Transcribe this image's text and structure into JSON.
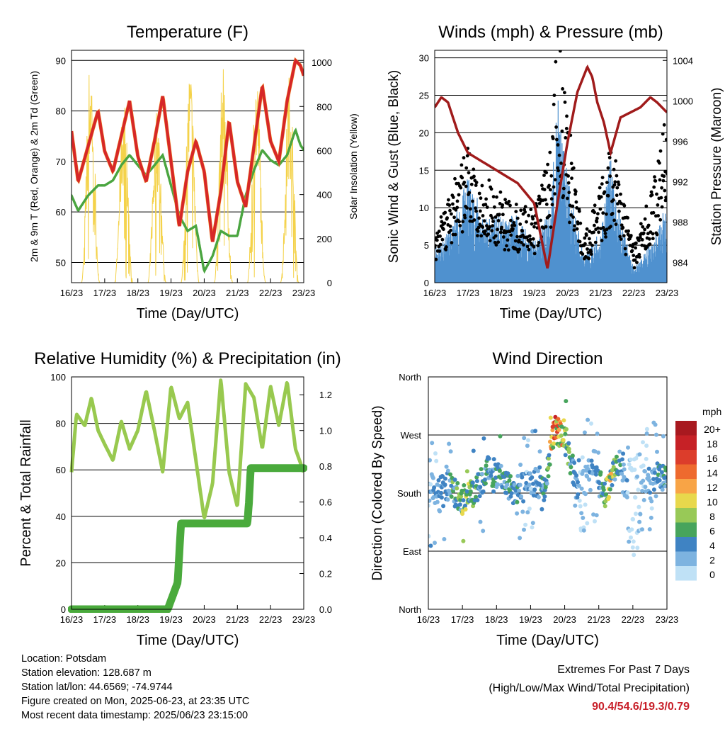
{
  "panels": {
    "temp": {
      "title": "Temperature (F)",
      "xlabel": "Time (Day/UTC)",
      "ylabel_left": "2m & 9m T (Red, Orange) & 2m Td (Green)",
      "ylabel_right": "Solar Insolation (Yellow)",
      "x_ticks": [
        "16/23",
        "17/23",
        "18/23",
        "19/23",
        "20/23",
        "21/23",
        "22/23",
        "23/23"
      ],
      "y_ticks_left": [
        "50",
        "60",
        "70",
        "80",
        "90"
      ],
      "y_ticks_right": [
        "0",
        "200",
        "400",
        "600",
        "800",
        "1000"
      ]
    },
    "wind": {
      "title": "Winds (mph) & Pressure (mb)",
      "xlabel": "Time (Day/UTC)",
      "ylabel_left": "Sonic Wind & Gust (Blue, Black)",
      "ylabel_right": "Station Pressure (Maroon)",
      "x_ticks": [
        "16/23",
        "17/23",
        "18/23",
        "19/23",
        "20/23",
        "21/23",
        "22/23",
        "23/23"
      ],
      "y_ticks_left": [
        "0",
        "5",
        "10",
        "15",
        "20",
        "25",
        "30"
      ],
      "y_ticks_right": [
        "984",
        "988",
        "992",
        "996",
        "1000",
        "1004"
      ]
    },
    "rh": {
      "title": "Relative Humidity (%) & Precipitation (in)",
      "xlabel": "Time (Day/UTC)",
      "ylabel_left": "Percent & Total Rainfall",
      "x_ticks": [
        "16/23",
        "17/23",
        "18/23",
        "19/23",
        "20/23",
        "21/23",
        "22/23",
        "23/23"
      ],
      "y_ticks_left": [
        "0",
        "20",
        "40",
        "60",
        "80",
        "100"
      ],
      "y_ticks_right": [
        "0.0",
        "0.2",
        "0.4",
        "0.6",
        "0.8",
        "1.0",
        "1.2"
      ]
    },
    "dir": {
      "title": "Wind Direction",
      "xlabel": "Time (Day/UTC)",
      "ylabel_left": "Direction (Colored By Speed)",
      "x_ticks": [
        "16/23",
        "17/23",
        "18/23",
        "19/23",
        "20/23",
        "21/23",
        "22/23",
        "23/23"
      ],
      "y_ticks_left": [
        "North",
        "East",
        "South",
        "West",
        "North"
      ],
      "legend_title": "mph",
      "legend_labels": [
        "20+",
        "18",
        "16",
        "14",
        "12",
        "10",
        "8",
        "6",
        "4",
        "2",
        "0"
      ],
      "legend_colors": [
        "#a8191f",
        "#c62126",
        "#dc3d2b",
        "#ee6a2e",
        "#f8a446",
        "#e8d84c",
        "#98c957",
        "#47a45c",
        "#3f83c3",
        "#7db3e0",
        "#bfe1f6"
      ]
    }
  },
  "info": {
    "location": "Location: Potsdam",
    "elevation": "Station elevation: 128.687 m",
    "latlon": "Station lat/lon: 44.6569; -74.9744",
    "created": "Figure created on Mon, 2025-06-23, at 23:35 UTC",
    "recent": "Most recent data timestamp: 2025/06/23 23:15:00"
  },
  "extremes": {
    "line1": "Extremes For Past 7 Days",
    "line2": "(High/Low/Max Wind/Total Precipitation)",
    "values": "90.4/54.6/19.3/0.79"
  },
  "colors": {
    "temp2m": "#d62728",
    "temp9m": "#f08a24",
    "dewpoint": "#4aa540",
    "solar": "#f4d24a",
    "wind": "#4f91cf",
    "gust": "#000000",
    "pressure": "#a01b1b",
    "rh": "#98c94f",
    "precip": "#4aaa3c"
  },
  "chart_data": [
    {
      "type": "line",
      "title": "Temperature (F)",
      "xlabel": "Time (Day/UTC)",
      "ylabel": "2m & 9m T (Red, Orange) & 2m Td (Green)",
      "y2label": "Solar Insolation (Yellow)",
      "ylim": [
        46,
        92
      ],
      "y2lim": [
        0,
        1055
      ],
      "x_unit": "days since 16/23",
      "series": [
        {
          "name": "2m T",
          "x": [
            0,
            0.2,
            0.5,
            0.8,
            1.0,
            1.25,
            1.5,
            1.75,
            2.0,
            2.25,
            2.5,
            2.75,
            3.0,
            3.25,
            3.5,
            3.75,
            4.0,
            4.25,
            4.5,
            4.75,
            5.0,
            5.25,
            5.5,
            5.75,
            6.0,
            6.25,
            6.5,
            6.75,
            6.9,
            7.0
          ],
          "values": [
            76,
            66,
            73,
            80,
            72,
            68,
            75,
            82,
            71,
            66,
            74,
            83,
            70,
            57,
            68,
            74,
            68,
            54,
            64,
            78,
            66,
            61,
            73,
            85,
            74,
            70,
            82,
            90,
            89,
            87
          ]
        },
        {
          "name": "2m Td",
          "x": [
            0,
            0.2,
            0.5,
            0.8,
            1.0,
            1.25,
            1.5,
            1.75,
            2.0,
            2.25,
            2.5,
            2.75,
            3.0,
            3.25,
            3.5,
            3.75,
            4.0,
            4.25,
            4.5,
            4.75,
            5.0,
            5.25,
            5.5,
            5.75,
            6.0,
            6.25,
            6.5,
            6.75,
            6.9,
            7.0
          ],
          "values": [
            64,
            61,
            64,
            66,
            66,
            67,
            70,
            72,
            70,
            68,
            70,
            72,
            66,
            60,
            57,
            58,
            49,
            52,
            57,
            56,
            56,
            64,
            69,
            73,
            71,
            70,
            72,
            77,
            74,
            73
          ]
        },
        {
          "name": "Solar Insolation",
          "x": [
            0.3,
            0.58,
            0.85,
            1.3,
            1.58,
            1.85,
            2.3,
            2.58,
            2.85,
            3.3,
            3.58,
            3.85,
            4.3,
            4.58,
            4.85,
            5.3,
            5.58,
            5.85,
            6.3,
            6.58,
            6.85
          ],
          "values": [
            0,
            1050,
            0,
            0,
            870,
            0,
            0,
            820,
            0,
            0,
            990,
            0,
            0,
            1000,
            0,
            0,
            980,
            0,
            0,
            960,
            0
          ]
        }
      ]
    },
    {
      "type": "scatter",
      "title": "Winds (mph) & Pressure (mb)",
      "xlabel": "Time (Day/UTC)",
      "ylabel": "Sonic Wind & Gust (Blue, Black)",
      "y2label": "Station Pressure (Maroon)",
      "ylim": [
        0,
        31
      ],
      "y2lim": [
        982,
        1005
      ],
      "x_unit": "days since 16/23",
      "series": [
        {
          "name": "Sonic Wind",
          "x": [
            0,
            0.5,
            1.0,
            1.5,
            2.0,
            2.5,
            3.0,
            3.5,
            3.7,
            4.0,
            4.5,
            5.0,
            5.3,
            5.5,
            6.0,
            6.5,
            7.0
          ],
          "values": [
            3,
            4,
            8,
            5,
            5,
            5,
            3,
            6,
            14,
            8,
            2,
            4,
            10,
            6,
            1,
            3,
            6
          ]
        },
        {
          "name": "Gust",
          "x": [
            0,
            0.5,
            1.0,
            1.5,
            2.0,
            2.5,
            3.0,
            3.5,
            3.7,
            4.0,
            4.5,
            5.0,
            5.3,
            5.5,
            6.0,
            6.5,
            7.0
          ],
          "values": [
            6,
            11,
            15,
            12,
            10,
            9,
            8,
            16,
            29,
            19,
            5,
            11,
            16,
            13,
            4,
            10,
            19
          ]
        },
        {
          "name": "Station Pressure",
          "x": [
            0,
            0.2,
            0.4,
            0.7,
            1.0,
            1.5,
            2.0,
            2.5,
            3.0,
            3.4,
            3.7,
            4.0,
            4.3,
            4.6,
            4.75,
            4.9,
            5.1,
            5.3,
            5.6,
            5.9,
            6.2,
            6.5,
            6.7,
            7.0
          ],
          "values": [
            999.5,
            1000.5,
            1000,
            997,
            995,
            994,
            993,
            992,
            990,
            983.5,
            990,
            996,
            1001,
            1003.5,
            1002.5,
            1000,
            998,
            995,
            998.5,
            999,
            999.5,
            1000.5,
            1000,
            999
          ]
        }
      ]
    },
    {
      "type": "line",
      "title": "Relative Humidity (%) & Precipitation (in)",
      "xlabel": "Time (Day/UTC)",
      "ylabel": "Percent & Total Rainfall",
      "ylim": [
        0,
        100
      ],
      "y2lim": [
        0,
        1.3
      ],
      "x_unit": "days since 16/23",
      "series": [
        {
          "name": "Relative Humidity",
          "x": [
            0,
            0.15,
            0.4,
            0.6,
            0.8,
            1.0,
            1.25,
            1.5,
            1.75,
            2.0,
            2.25,
            2.5,
            2.75,
            3.0,
            3.25,
            3.5,
            3.75,
            4.0,
            4.25,
            4.5,
            4.75,
            5.0,
            5.25,
            5.5,
            5.75,
            6.0,
            6.25,
            6.5,
            6.75,
            7.0
          ],
          "values": [
            60,
            85,
            80,
            92,
            78,
            72,
            65,
            82,
            70,
            78,
            95,
            78,
            60,
            97,
            83,
            90,
            65,
            40,
            55,
            100,
            60,
            45,
            98,
            92,
            70,
            97,
            80,
            99,
            70,
            60
          ]
        },
        {
          "name": "Total Precipitation",
          "x": [
            0,
            2.9,
            3.0,
            3.2,
            3.3,
            3.5,
            5.3,
            5.35,
            5.4,
            7.0
          ],
          "values": [
            0,
            0,
            0.05,
            0.15,
            0.48,
            0.48,
            0.48,
            0.6,
            0.79,
            0.79
          ]
        }
      ]
    },
    {
      "type": "scatter",
      "title": "Wind Direction",
      "xlabel": "Time (Day/UTC)",
      "ylabel": "Direction (Colored By Speed)",
      "ylim": [
        0,
        360
      ],
      "y_tick_labels": [
        "North",
        "East",
        "South",
        "West",
        "North"
      ],
      "x_unit": "days since 16/23",
      "series": [
        {
          "name": "Wind Direction",
          "x": [
            0.2,
            0.6,
            1.0,
            1.4,
            1.8,
            2.2,
            2.6,
            3.0,
            3.4,
            3.7,
            4.0,
            4.4,
            4.8,
            5.2,
            5.6,
            6.0,
            6.4,
            6.8
          ],
          "values": [
            180,
            190,
            170,
            185,
            220,
            200,
            180,
            200,
            190,
            280,
            270,
            180,
            210,
            180,
            230,
            150,
            200,
            210
          ]
        }
      ]
    }
  ]
}
